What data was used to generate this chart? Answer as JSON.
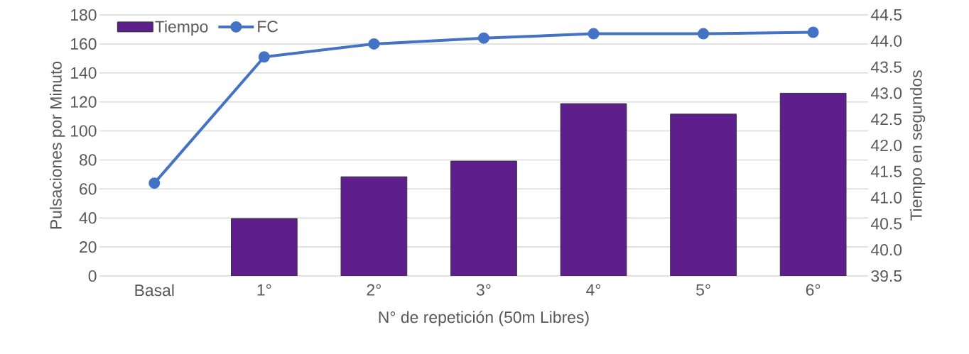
{
  "chart_data": {
    "type": "bar",
    "categories": [
      "Basal",
      "1°",
      "2°",
      "3°",
      "4°",
      "5°",
      "6°"
    ],
    "xlabel": "N° de repetición (50m Libres)",
    "ylabel": "Pulsaciones por Minuto",
    "y2label": "Tiempo en segundos",
    "series": [
      {
        "name": "Tiempo",
        "axis": "y2",
        "color": "#5e1f8c",
        "values": [
          null,
          40.6,
          41.4,
          41.7,
          42.8,
          42.6,
          43.0
        ]
      },
      {
        "name": "FC",
        "type": "line",
        "axis": "y",
        "color": "#4472c4",
        "values": [
          64,
          151,
          160,
          164,
          167,
          167,
          168
        ]
      }
    ],
    "ylim": [
      0,
      180
    ],
    "yticks": [
      0,
      20,
      40,
      60,
      80,
      100,
      120,
      140,
      160,
      180
    ],
    "y2lim": [
      39.5,
      44.5
    ],
    "y2ticks": [
      39.5,
      {
        "value": 40.0,
        "label": "40.0"
      },
      40.5,
      {
        "value": 41.0,
        "label": "41.0"
      },
      41.5,
      {
        "value": 42.0,
        "label": "42.0"
      },
      42.5,
      {
        "value": 43.0,
        "label": "43.0"
      },
      43.5,
      {
        "value": 44.0,
        "label": "44.0"
      },
      44.5
    ],
    "grid": "y",
    "legend": "top left",
    "marker": "circle",
    "line_style": "solid"
  }
}
